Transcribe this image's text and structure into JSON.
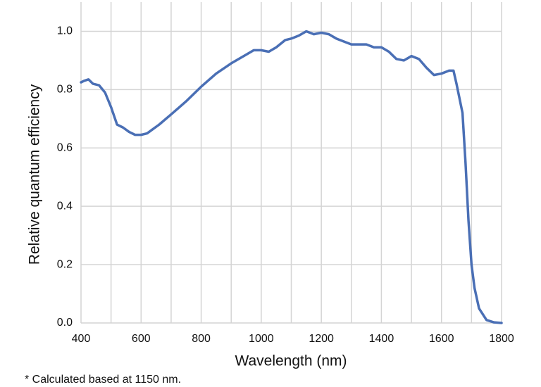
{
  "chart_data": {
    "type": "line",
    "footnote": "* Calculated based at 1150 nm.",
    "xlabel": "Wavelength (nm)",
    "ylabel": "Relative quantum efficiency",
    "xlim": [
      400,
      1800
    ],
    "ylim": [
      0,
      1.1
    ],
    "xticks": [
      400,
      600,
      800,
      1000,
      1200,
      1400,
      1600,
      1800
    ],
    "xminorticks": [
      500,
      700,
      900,
      1100,
      1300,
      1500,
      1700
    ],
    "yticks": [
      {
        "value": 0,
        "label": "0.0"
      },
      0.2,
      0.4,
      0.6,
      0.8,
      {
        "value": 1,
        "label": "1.0"
      }
    ],
    "grid": true,
    "x": [
      400,
      410,
      425,
      440,
      460,
      480,
      500,
      520,
      540,
      560,
      580,
      600,
      620,
      640,
      660,
      700,
      750,
      800,
      850,
      900,
      950,
      975,
      1000,
      1025,
      1050,
      1080,
      1100,
      1125,
      1150,
      1175,
      1200,
      1225,
      1250,
      1275,
      1300,
      1325,
      1350,
      1375,
      1400,
      1425,
      1450,
      1475,
      1500,
      1525,
      1550,
      1575,
      1600,
      1625,
      1640,
      1650,
      1670,
      1680,
      1690,
      1700,
      1710,
      1725,
      1750,
      1775,
      1800
    ],
    "series": [
      {
        "color": "#4a6fb5",
        "values": [
          0.825,
          0.83,
          0.835,
          0.82,
          0.815,
          0.79,
          0.74,
          0.68,
          0.67,
          0.655,
          0.645,
          0.645,
          0.65,
          0.665,
          0.68,
          0.715,
          0.76,
          0.81,
          0.855,
          0.89,
          0.92,
          0.935,
          0.935,
          0.93,
          0.945,
          0.97,
          0.975,
          0.985,
          1.0,
          0.99,
          0.995,
          0.99,
          0.975,
          0.965,
          0.955,
          0.955,
          0.955,
          0.945,
          0.945,
          0.93,
          0.905,
          0.9,
          0.915,
          0.905,
          0.875,
          0.85,
          0.855,
          0.865,
          0.865,
          0.82,
          0.72,
          0.55,
          0.35,
          0.2,
          0.12,
          0.05,
          0.01,
          0.002,
          0
        ]
      }
    ]
  }
}
